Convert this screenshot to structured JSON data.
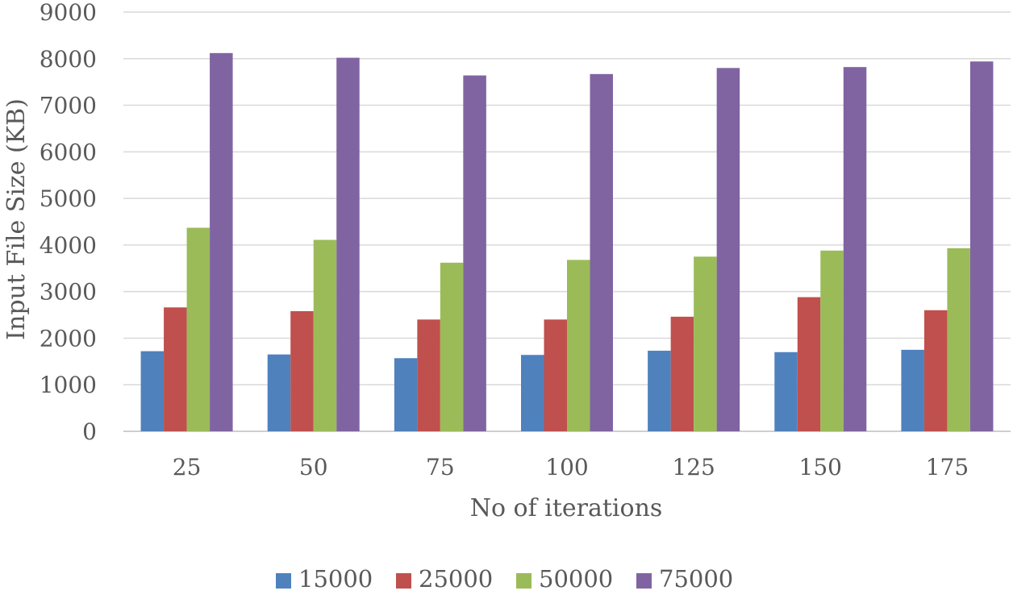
{
  "chart_data": {
    "type": "bar",
    "xlabel": "No of  iterations",
    "ylabel": "Input File Size (KB)",
    "ylim": [
      0,
      9000
    ],
    "yticks": [
      "0",
      "1000",
      "2000",
      "3000",
      "4000",
      "5000",
      "6000",
      "7000",
      "8000",
      "9000"
    ],
    "categories": [
      "25",
      "50",
      "75",
      "100",
      "125",
      "150",
      "175"
    ],
    "grid": true,
    "legend_position": "bottom",
    "series": [
      {
        "name": "15000",
        "color": "#4f81bd",
        "values": [
          1720,
          1650,
          1570,
          1640,
          1730,
          1700,
          1750
        ]
      },
      {
        "name": "25000",
        "color": "#c0504d",
        "values": [
          2660,
          2580,
          2400,
          2400,
          2460,
          2880,
          2600
        ]
      },
      {
        "name": "50000",
        "color": "#9bbb59",
        "values": [
          4370,
          4110,
          3620,
          3680,
          3750,
          3880,
          3930
        ]
      },
      {
        "name": "75000",
        "color": "#8064a2",
        "values": [
          8120,
          8020,
          7640,
          7670,
          7800,
          7820,
          7940
        ]
      }
    ]
  }
}
